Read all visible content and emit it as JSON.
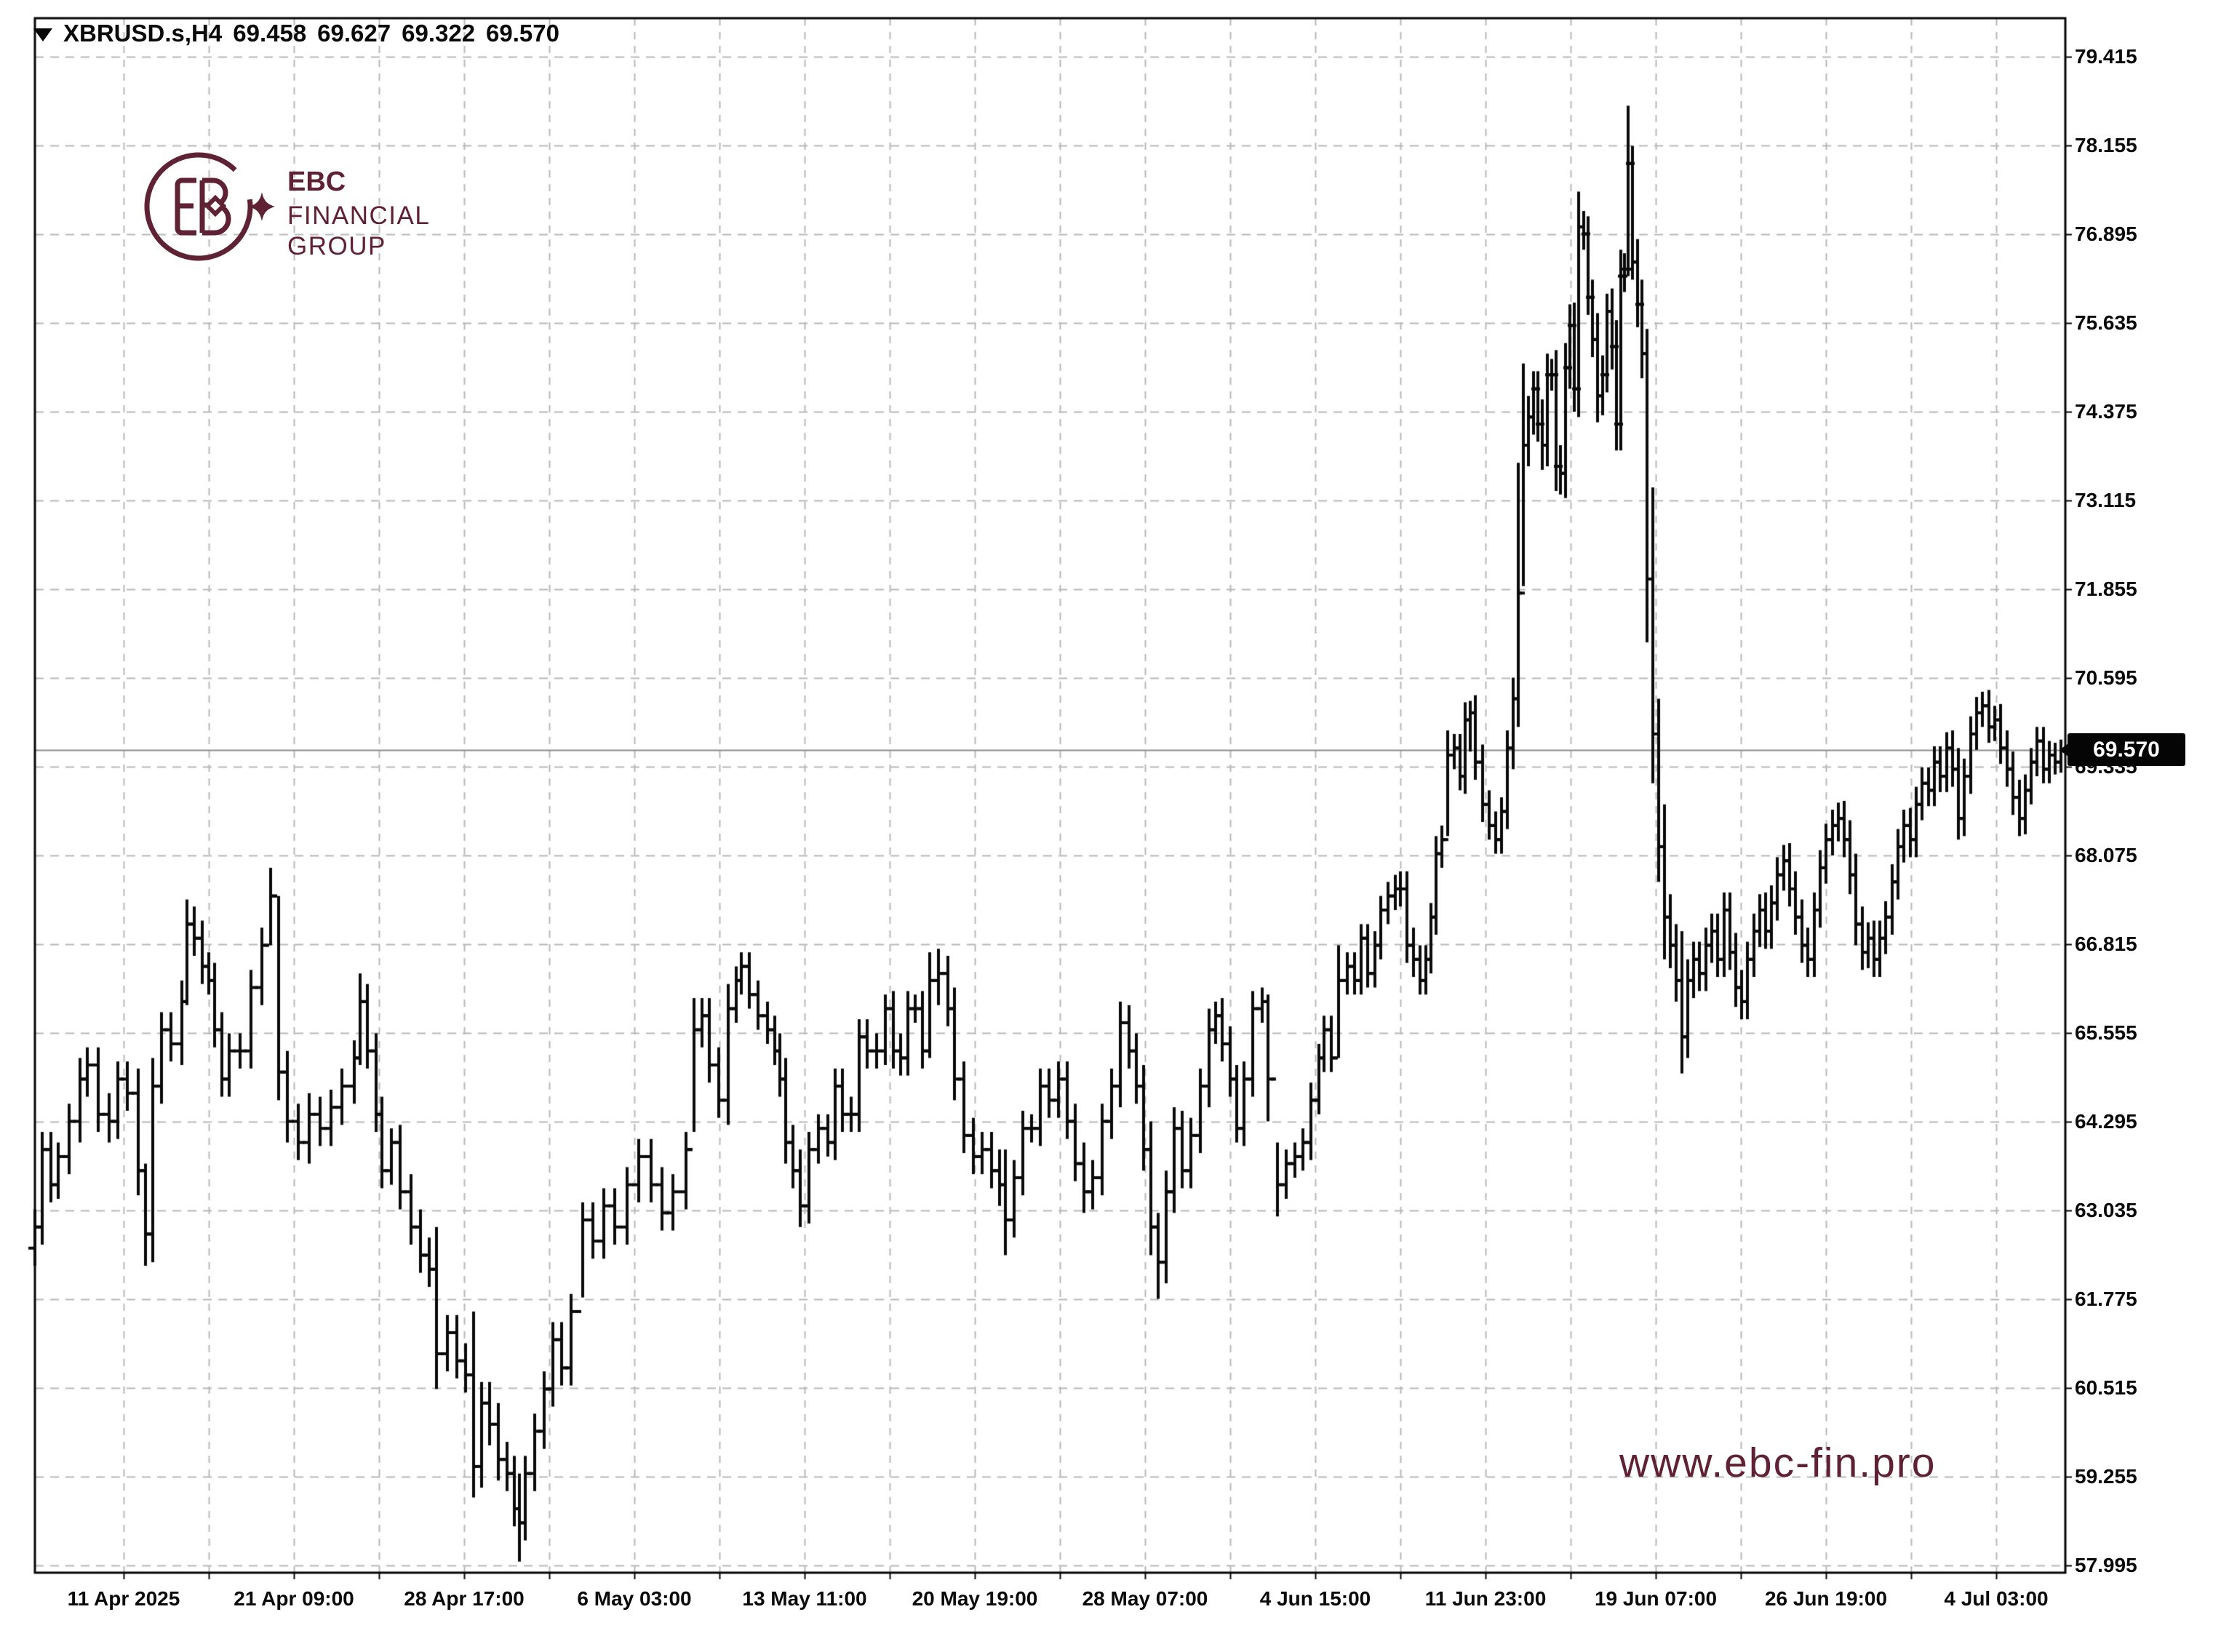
{
  "window": {
    "symbol_title": "XBRUSD.s,H4",
    "ohlc_line": {
      "open": "69.458",
      "high": "69.627",
      "low": "69.322",
      "close": "69.570"
    }
  },
  "logo": {
    "line1": "EBC",
    "line2": "FINANCIAL",
    "line3": "GROUP",
    "color": "#5f2234"
  },
  "watermark": {
    "text": "www.ebc-fin.pro",
    "color": "#5f2234"
  },
  "price_tag": {
    "text": "69.570"
  },
  "colors": {
    "background": "#ffffff",
    "bars": "#0a0a0a",
    "grid": "#b8b8b8",
    "border": "#050505",
    "price_line": "#8c8c8c",
    "accent_maroon": "#5f2234"
  },
  "chart_data": {
    "type": "bar",
    "subtype": "ohlc-bars",
    "symbol": "XBRUSD.s",
    "timeframe": "H4",
    "title": "XBRUSD.s,H4  69.458 69.627 69.322 69.570",
    "current_price": 69.57,
    "ylim": [
      57.995,
      79.415
    ],
    "y_tick_step": 1.26,
    "grid": "dashed",
    "y_ticks": [
      79.415,
      78.155,
      76.895,
      75.635,
      74.375,
      73.115,
      71.855,
      70.595,
      69.335,
      68.075,
      66.815,
      65.555,
      64.295,
      63.035,
      61.775,
      60.515,
      59.255,
      57.995
    ],
    "x_labels": [
      "11 Apr 2025",
      "21 Apr 09:00",
      "28 Apr 17:00",
      "6 May 03:00",
      "13 May 11:00",
      "20 May 19:00",
      "28 May 07:00",
      "4 Jun 15:00",
      "11 Jun 23:00",
      "19 Jun 07:00",
      "26 Jun 19:00",
      "4 Jul 03:00"
    ],
    "bars_format": "[x_px, close, range_est, high_override?, low_override?]",
    "bars": [
      [
        48,
        62.8,
        0.5
      ],
      [
        58,
        63.9,
        0.5
      ],
      [
        70,
        63.4,
        0.5
      ],
      [
        80,
        63.8,
        0.4
      ],
      [
        95,
        64.3,
        0.5
      ],
      [
        110,
        64.9,
        0.6
      ],
      [
        120,
        65.1,
        0.5
      ],
      [
        135,
        64.4,
        0.5
      ],
      [
        150,
        64.3,
        0.6
      ],
      [
        162,
        64.9,
        0.5
      ],
      [
        175,
        64.7,
        0.5
      ],
      [
        190,
        63.6,
        0.7
      ],
      [
        200,
        62.7,
        0.6,
        63.7,
        62.25
      ],
      [
        210,
        64.8,
        0.8
      ],
      [
        222,
        65.6,
        0.5
      ],
      [
        235,
        65.4,
        0.5
      ],
      [
        250,
        66.0,
        0.6
      ],
      [
        257,
        67.1,
        0.5,
        67.45,
        65.95
      ],
      [
        267,
        66.9,
        0.5
      ],
      [
        278,
        66.5,
        0.5
      ],
      [
        287,
        66.3,
        0.4
      ],
      [
        295,
        65.6,
        0.5
      ],
      [
        305,
        64.9,
        0.5
      ],
      [
        315,
        65.3,
        0.5
      ],
      [
        330,
        65.3,
        0.5
      ],
      [
        345,
        66.2,
        0.5
      ],
      [
        360,
        66.8,
        0.5
      ],
      [
        372,
        67.5,
        0.5,
        67.9,
        66.8
      ],
      [
        383,
        65.0,
        0.5,
        67.5,
        64.6
      ],
      [
        395,
        64.3,
        0.6
      ],
      [
        410,
        64.0,
        0.5
      ],
      [
        425,
        64.4,
        0.6
      ],
      [
        440,
        64.2,
        0.5
      ],
      [
        455,
        64.5,
        0.5
      ],
      [
        470,
        64.8,
        0.5
      ],
      [
        487,
        65.2,
        0.5
      ],
      [
        495,
        66.0,
        0.5,
        66.4,
        65.1
      ],
      [
        505,
        65.3,
        0.5
      ],
      [
        517,
        64.4,
        0.5
      ],
      [
        525,
        63.6,
        0.5
      ],
      [
        538,
        64.0,
        0.4
      ],
      [
        550,
        63.3,
        0.5
      ],
      [
        565,
        62.8,
        0.5
      ],
      [
        578,
        62.4,
        0.5
      ],
      [
        590,
        62.2,
        0.5
      ],
      [
        600,
        61.0,
        0.5,
        62.8,
        60.5
      ],
      [
        615,
        61.3,
        0.5
      ],
      [
        628,
        60.9,
        0.5
      ],
      [
        640,
        60.7,
        0.5
      ],
      [
        651,
        59.4,
        0.5,
        61.6,
        58.96
      ],
      [
        662,
        60.3,
        0.6
      ],
      [
        673,
        60.0,
        0.6
      ],
      [
        685,
        59.5,
        0.6
      ],
      [
        697,
        59.3,
        0.5
      ],
      [
        707,
        58.8,
        0.5
      ],
      [
        714,
        58.6,
        0.5,
        59.3,
        58.05
      ],
      [
        722,
        59.3,
        0.5
      ],
      [
        735,
        59.9,
        0.5
      ],
      [
        748,
        60.5,
        0.5
      ],
      [
        760,
        61.2,
        0.5
      ],
      [
        772,
        60.8,
        0.5
      ],
      [
        785,
        61.6,
        0.5
      ],
      [
        801,
        62.9,
        0.5,
        63.15,
        61.8
      ],
      [
        815,
        62.6,
        0.5
      ],
      [
        830,
        63.1,
        0.5
      ],
      [
        845,
        62.8,
        0.5
      ],
      [
        862,
        63.4,
        0.5
      ],
      [
        878,
        63.8,
        0.5
      ],
      [
        895,
        63.4,
        0.5
      ],
      [
        910,
        63.0,
        0.5
      ],
      [
        925,
        63.3,
        0.5
      ],
      [
        943,
        63.9,
        0.5
      ],
      [
        954,
        65.6,
        0.5,
        66.05,
        64.15
      ],
      [
        965,
        65.8,
        0.5
      ],
      [
        975,
        65.1,
        0.5
      ],
      [
        988,
        64.6,
        0.5
      ],
      [
        1001,
        65.9,
        0.7
      ],
      [
        1012,
        66.3,
        0.4
      ],
      [
        1019,
        66.5,
        0.4
      ],
      [
        1030,
        66.1,
        0.4
      ],
      [
        1042,
        65.8,
        0.4
      ],
      [
        1055,
        65.6,
        0.4
      ],
      [
        1065,
        65.3,
        0.4
      ],
      [
        1072,
        64.9,
        0.5
      ],
      [
        1080,
        64.0,
        0.6
      ],
      [
        1090,
        63.6,
        0.5
      ],
      [
        1100,
        63.1,
        0.6
      ],
      [
        1112,
        63.9,
        0.5
      ],
      [
        1125,
        64.2,
        0.4
      ],
      [
        1138,
        64.0,
        0.4
      ],
      [
        1148,
        64.8,
        0.5
      ],
      [
        1158,
        64.4,
        0.5
      ],
      [
        1170,
        64.4,
        0.5
      ],
      [
        1181,
        65.5,
        0.5
      ],
      [
        1192,
        65.3,
        0.5
      ],
      [
        1205,
        65.3,
        0.5
      ],
      [
        1217,
        65.9,
        0.4
      ],
      [
        1228,
        65.3,
        0.5
      ],
      [
        1238,
        65.2,
        0.5
      ],
      [
        1248,
        65.9,
        0.5
      ],
      [
        1258,
        65.9,
        0.4
      ],
      [
        1268,
        65.3,
        0.5
      ],
      [
        1278,
        66.3,
        0.5,
        66.7,
        65.2
      ],
      [
        1290,
        66.4,
        0.4,
        66.75,
        65.95
      ],
      [
        1303,
        65.9,
        0.5
      ],
      [
        1312,
        64.9,
        0.6
      ],
      [
        1325,
        64.1,
        0.5
      ],
      [
        1338,
        63.8,
        0.5
      ],
      [
        1350,
        63.9,
        0.5
      ],
      [
        1363,
        63.6,
        0.5
      ],
      [
        1374,
        63.4,
        0.6
      ],
      [
        1382,
        62.9,
        0.5,
        63.9,
        62.4
      ],
      [
        1394,
        63.5,
        0.5
      ],
      [
        1406,
        64.2,
        0.5
      ],
      [
        1418,
        64.2,
        0.4
      ],
      [
        1430,
        64.8,
        0.5
      ],
      [
        1442,
        64.6,
        0.5
      ],
      [
        1455,
        64.9,
        0.5
      ],
      [
        1467,
        64.3,
        0.5
      ],
      [
        1478,
        63.7,
        0.5
      ],
      [
        1490,
        63.3,
        0.6
      ],
      [
        1502,
        63.5,
        0.5
      ],
      [
        1515,
        64.3,
        0.5
      ],
      [
        1528,
        64.8,
        0.5
      ],
      [
        1540,
        65.7,
        0.6
      ],
      [
        1552,
        65.3,
        0.5
      ],
      [
        1562,
        64.8,
        0.5
      ],
      [
        1572,
        63.9,
        0.6
      ],
      [
        1582,
        62.8,
        0.8
      ],
      [
        1592,
        62.3,
        0.5,
        63.0,
        61.78
      ],
      [
        1603,
        63.3,
        0.6
      ],
      [
        1614,
        64.2,
        0.6
      ],
      [
        1625,
        63.6,
        0.5
      ],
      [
        1637,
        64.1,
        0.5
      ],
      [
        1650,
        64.8,
        0.5
      ],
      [
        1662,
        65.6,
        0.6
      ],
      [
        1671,
        65.8,
        0.4
      ],
      [
        1680,
        65.4,
        0.5
      ],
      [
        1691,
        64.9,
        0.5
      ],
      [
        1700,
        64.2,
        0.4
      ],
      [
        1710,
        64.9,
        0.5
      ],
      [
        1722,
        65.9,
        0.5
      ],
      [
        1735,
        66.0,
        0.4
      ],
      [
        1743,
        64.9,
        0.5,
        66.1,
        64.3
      ],
      [
        1756,
        63.4,
        0.5,
        64.0,
        62.95
      ],
      [
        1768,
        63.7,
        0.4
      ],
      [
        1780,
        63.8,
        0.4
      ],
      [
        1791,
        64.0,
        0.4
      ],
      [
        1802,
        64.6,
        0.5
      ],
      [
        1813,
        65.2,
        0.4
      ],
      [
        1820,
        65.6,
        0.4
      ],
      [
        1830,
        65.2,
        0.4
      ],
      [
        1840,
        66.3,
        0.5,
        66.8,
        65.2
      ],
      [
        1852,
        66.5,
        0.4
      ],
      [
        1862,
        66.3,
        0.4
      ],
      [
        1871,
        66.9,
        0.4
      ],
      [
        1880,
        66.4,
        0.4
      ],
      [
        1890,
        66.8,
        0.4
      ],
      [
        1898,
        67.3,
        0.4
      ],
      [
        1908,
        67.5,
        0.4
      ],
      [
        1918,
        67.6,
        0.4
      ],
      [
        1925,
        67.6,
        0.5
      ],
      [
        1934,
        66.8,
        0.5
      ],
      [
        1943,
        66.6,
        0.5
      ],
      [
        1952,
        66.3,
        0.4
      ],
      [
        1960,
        66.6,
        0.4
      ],
      [
        1967,
        67.2,
        0.4
      ],
      [
        1974,
        68.1,
        0.5
      ],
      [
        1982,
        68.3,
        0.4
      ],
      [
        1990,
        69.5,
        0.5,
        69.85,
        68.35
      ],
      [
        1999,
        69.6,
        0.4
      ],
      [
        2007,
        69.2,
        0.4
      ],
      [
        2014,
        70.0,
        0.5
      ],
      [
        2021,
        70.1,
        0.35,
        70.27,
        69.55
      ],
      [
        2028,
        69.4,
        0.5
      ],
      [
        2038,
        68.8,
        0.5
      ],
      [
        2047,
        68.5,
        0.4
      ],
      [
        2056,
        68.3,
        0.4
      ],
      [
        2064,
        68.7,
        0.4
      ],
      [
        2072,
        69.6,
        0.5
      ],
      [
        2080,
        70.3,
        0.6
      ],
      [
        2087,
        71.8,
        0.6,
        73.65,
        69.9
      ],
      [
        2094,
        73.9,
        0.6,
        75.06,
        71.9
      ],
      [
        2101,
        74.3,
        0.6
      ],
      [
        2108,
        74.7,
        0.5
      ],
      [
        2114,
        74.2,
        0.5
      ],
      [
        2120,
        73.9,
        0.7
      ],
      [
        2127,
        74.9,
        0.6
      ],
      [
        2133,
        74.9,
        0.45
      ],
      [
        2139,
        73.6,
        0.7
      ],
      [
        2145,
        73.5,
        0.6
      ],
      [
        2152,
        75.0,
        0.7
      ],
      [
        2158,
        75.6,
        0.6
      ],
      [
        2164,
        74.7,
        0.65
      ],
      [
        2170,
        77.0,
        0.5,
        77.5,
        74.3
      ],
      [
        2177,
        76.9,
        0.45
      ],
      [
        2183,
        76.0,
        0.5
      ],
      [
        2189,
        75.4,
        0.5
      ],
      [
        2196,
        74.6,
        0.75
      ],
      [
        2203,
        74.9,
        0.55
      ],
      [
        2209,
        75.8,
        0.5
      ],
      [
        2216,
        75.3,
        0.65
      ],
      [
        2222,
        74.2,
        0.75
      ],
      [
        2228,
        76.3,
        0.75
      ],
      [
        2233,
        76.4,
        0.45
      ],
      [
        2238,
        77.9,
        0.5,
        78.72,
        76.3
      ],
      [
        2244,
        76.5,
        0.5
      ],
      [
        2251,
        75.9,
        0.65
      ],
      [
        2257,
        75.2,
        0.7
      ],
      [
        2264,
        72.0,
        0.5,
        75.55,
        71.1
      ],
      [
        2272,
        69.8,
        0.5,
        73.3,
        69.1
      ],
      [
        2280,
        68.2,
        1.0
      ],
      [
        2288,
        67.2,
        1.2
      ],
      [
        2296,
        66.8,
        0.65
      ],
      [
        2304,
        66.3,
        0.6
      ],
      [
        2312,
        65.5,
        0.5,
        67.0,
        64.98
      ],
      [
        2320,
        66.3,
        0.6
      ],
      [
        2328,
        66.6,
        0.5
      ],
      [
        2336,
        66.4,
        0.5
      ],
      [
        2345,
        66.8,
        0.5
      ],
      [
        2353,
        67.0,
        0.5
      ],
      [
        2361,
        66.6,
        0.5
      ],
      [
        2370,
        67.3,
        0.5
      ],
      [
        2378,
        66.7,
        0.5
      ],
      [
        2386,
        66.2,
        0.55
      ],
      [
        2394,
        66.0,
        0.5
      ],
      [
        2402,
        66.6,
        0.5
      ],
      [
        2411,
        67.0,
        0.5
      ],
      [
        2419,
        67.3,
        0.45
      ],
      [
        2427,
        67.0,
        0.5
      ],
      [
        2435,
        67.4,
        0.5
      ],
      [
        2443,
        67.8,
        0.5
      ],
      [
        2452,
        68.0,
        0.45
      ],
      [
        2460,
        67.6,
        0.5
      ],
      [
        2468,
        67.2,
        0.5
      ],
      [
        2477,
        66.8,
        0.5
      ],
      [
        2485,
        66.6,
        0.5
      ],
      [
        2494,
        67.3,
        0.5
      ],
      [
        2502,
        67.9,
        0.5
      ],
      [
        2510,
        68.3,
        0.45
      ],
      [
        2519,
        68.5,
        0.45
      ],
      [
        2527,
        68.6,
        0.45
      ],
      [
        2535,
        68.3,
        0.5
      ],
      [
        2543,
        67.8,
        0.55
      ],
      [
        2551,
        67.1,
        0.6
      ],
      [
        2560,
        66.7,
        0.5
      ],
      [
        2568,
        66.9,
        0.45
      ],
      [
        2576,
        66.6,
        0.5
      ],
      [
        2584,
        66.9,
        0.5
      ],
      [
        2592,
        67.2,
        0.45
      ],
      [
        2601,
        67.7,
        0.5
      ],
      [
        2609,
        68.2,
        0.5
      ],
      [
        2617,
        68.5,
        0.45
      ],
      [
        2626,
        68.3,
        0.5
      ],
      [
        2634,
        68.8,
        0.5
      ],
      [
        2642,
        69.1,
        0.45
      ],
      [
        2651,
        69.0,
        0.45
      ],
      [
        2659,
        69.4,
        0.45
      ],
      [
        2667,
        69.2,
        0.45
      ],
      [
        2676,
        69.6,
        0.45
      ],
      [
        2684,
        69.3,
        0.5
      ],
      [
        2692,
        68.6,
        0.6
      ],
      [
        2700,
        69.2,
        0.5
      ],
      [
        2709,
        69.8,
        0.5
      ],
      [
        2717,
        70.1,
        0.45
      ],
      [
        2725,
        70.2,
        0.4
      ],
      [
        2734,
        69.9,
        0.45
      ],
      [
        2742,
        70.0,
        0.4
      ],
      [
        2750,
        69.6,
        0.45
      ],
      [
        2759,
        69.3,
        0.5
      ],
      [
        2767,
        68.9,
        0.5
      ],
      [
        2776,
        68.6,
        0.5
      ],
      [
        2784,
        69.0,
        0.45
      ],
      [
        2792,
        69.4,
        0.4
      ],
      [
        2800,
        69.7,
        0.4
      ],
      [
        2809,
        69.3,
        0.4
      ],
      [
        2817,
        69.5,
        0.4
      ],
      [
        2825,
        69.4,
        0.35
      ],
      [
        2833,
        69.57,
        0.3
      ]
    ]
  }
}
